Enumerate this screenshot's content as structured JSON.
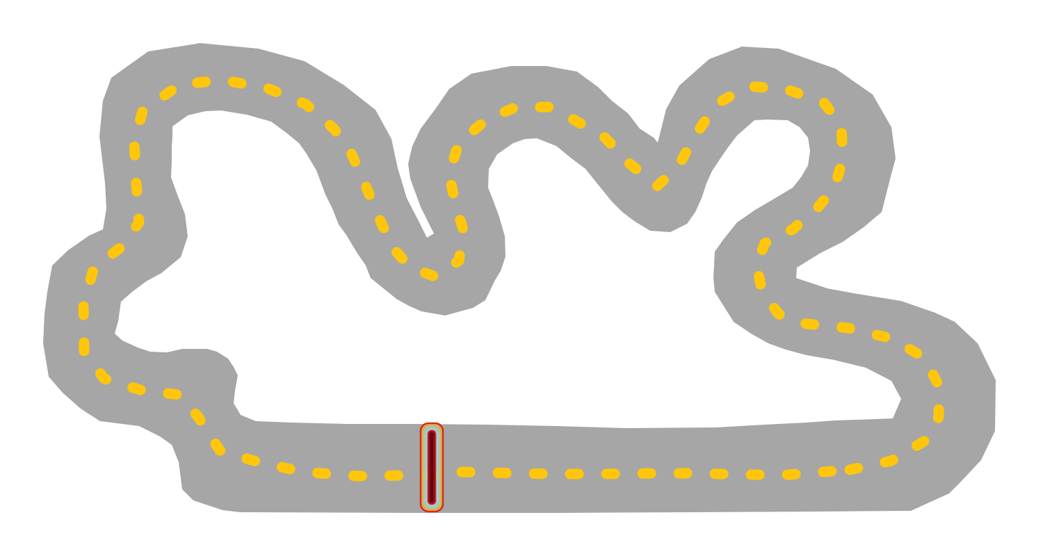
{
  "scene": {
    "background_color": "#ffffff",
    "asphalt_color": "#a6a6a6",
    "center_line_color": "#ffc60b",
    "center_line_style": "dashed",
    "start_finish_gate": {
      "icon": "start-finish-gate-icon",
      "colors": {
        "outer": "#d62a1f",
        "band1": "#f6a531",
        "band2": "#9bd1a1",
        "band3": "#b7c5e0",
        "core": "#8b0d16"
      }
    }
  }
}
